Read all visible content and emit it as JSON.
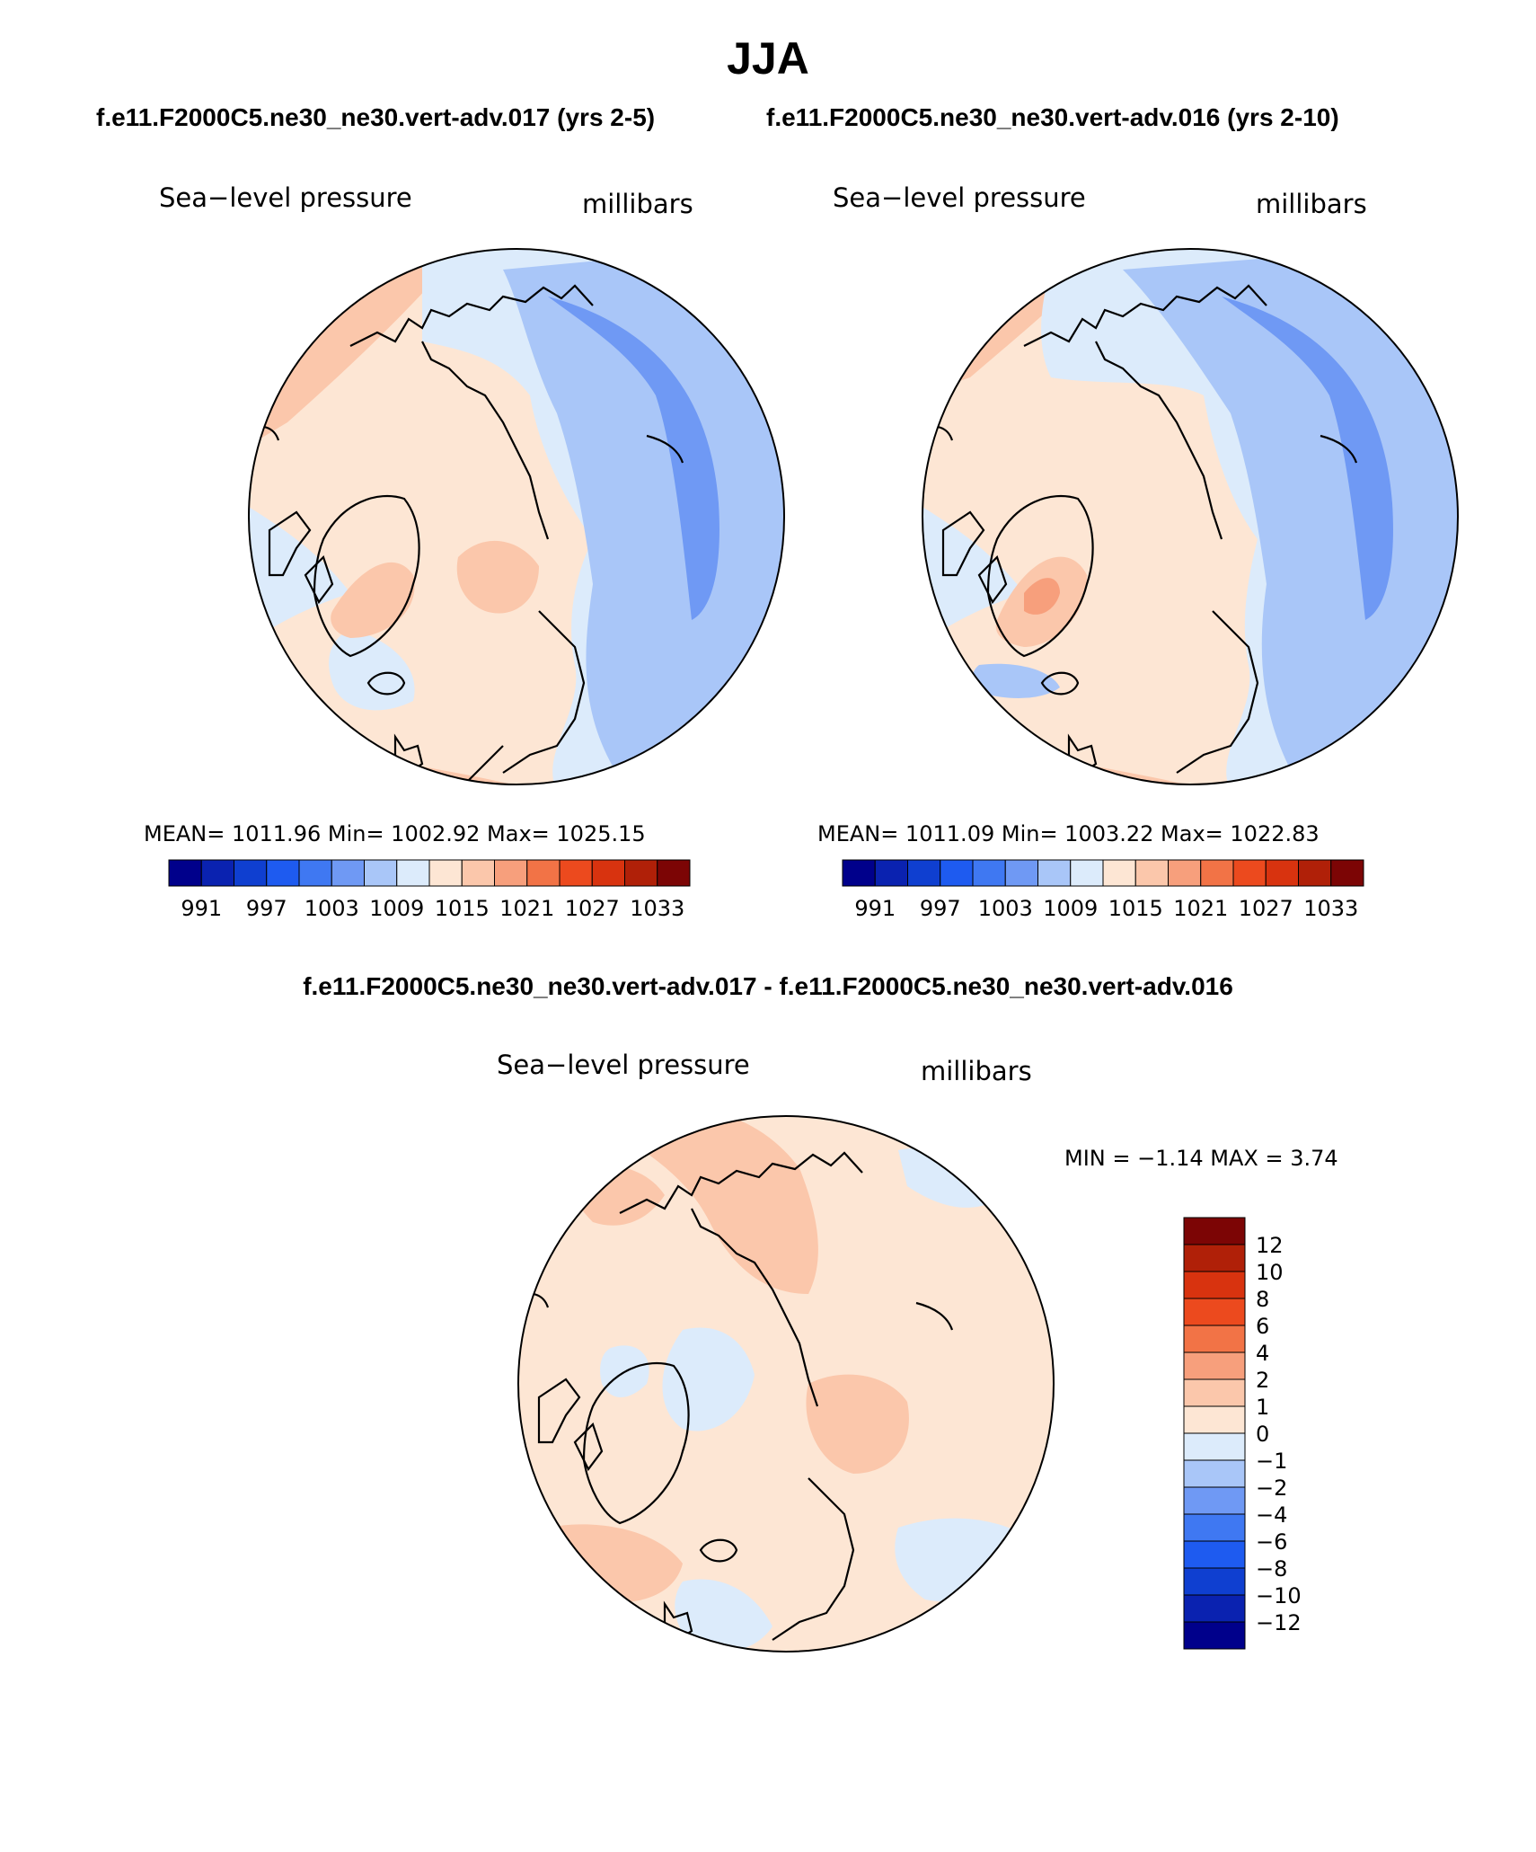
{
  "figure": {
    "season": "JJA",
    "case1_title": "f.e11.F2000C5.ne30_ne30.vert-adv.017 (yrs 2-5)",
    "case2_title": "f.e11.F2000C5.ne30_ne30.vert-adv.016 (yrs 2-10)",
    "diff_title": "f.e11.F2000C5.ne30_ne30.vert-adv.017 - f.e11.F2000C5.ne30_ne30.vert-adv.016"
  },
  "panels": [
    {
      "variable": "Sea−level pressure",
      "units": "millibars",
      "stats": "MEAN=  1011.96    Min=  1002.92    Max=  1025.15"
    },
    {
      "variable": "Sea−level pressure",
      "units": "millibars",
      "stats": "MEAN=  1011.09    Min=  1003.22    Max=  1022.83"
    },
    {
      "variable": "Sea−level pressure",
      "units": "millibars",
      "stats": "MIN =   −1.14  MAX =     3.74"
    }
  ],
  "colorbar_abs": {
    "colors": [
      "#00008b",
      "#0a22b0",
      "#0f3fd0",
      "#1e5bf0",
      "#3f78f2",
      "#6f99f4",
      "#a9c6f8",
      "#dcebfb",
      "#fde6d4",
      "#fbc7ab",
      "#f79f7c",
      "#f27346",
      "#ec4a1e",
      "#d8330f",
      "#b02008",
      "#7c0505"
    ],
    "labels": [
      "991",
      "997",
      "1003",
      "1009",
      "1015",
      "1021",
      "1027",
      "1033"
    ]
  },
  "colorbar_diff": {
    "colors": [
      "#7c0505",
      "#b02008",
      "#d8330f",
      "#ec4a1e",
      "#f27346",
      "#f79f7c",
      "#fbc7ab",
      "#fde6d4",
      "#dcebfb",
      "#a9c6f8",
      "#6f99f4",
      "#3f78f2",
      "#1e5bf0",
      "#0f3fd0",
      "#0a22b0",
      "#00008b"
    ],
    "labels": [
      "12",
      "10",
      "8",
      "6",
      "4",
      "2",
      "1",
      "0",
      "−1",
      "−2",
      "−4",
      "−6",
      "−8",
      "−10",
      "−12"
    ]
  }
}
